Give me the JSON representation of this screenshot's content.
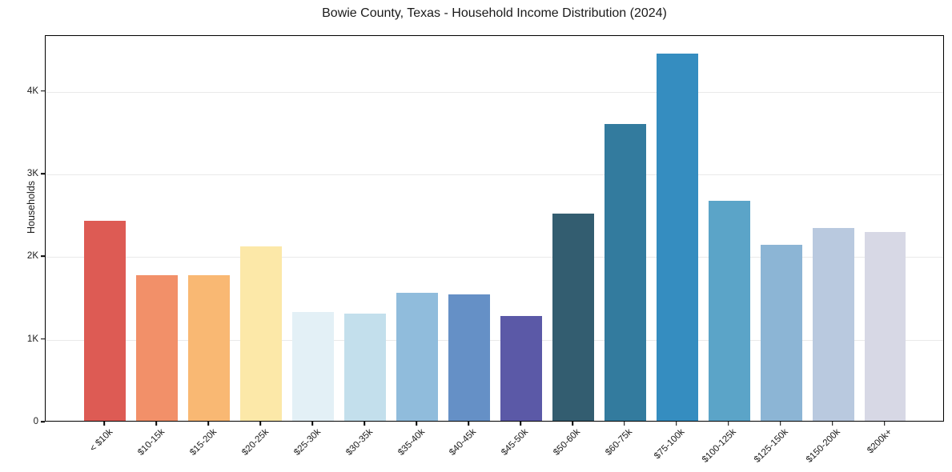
{
  "chart_data": {
    "type": "bar",
    "title": "Bowie County, Texas - Household Income Distribution (2024)",
    "xlabel": "",
    "ylabel": "Households",
    "ylim": [
      0,
      4675
    ],
    "grid": "horizontal-only",
    "legend": "none",
    "background": "#ffffff",
    "yticks": [
      {
        "value": 0,
        "label": "0"
      },
      {
        "value": 1000,
        "label": "1K"
      },
      {
        "value": 2000,
        "label": "2K"
      },
      {
        "value": 3000,
        "label": "3K"
      },
      {
        "value": 4000,
        "label": "4K"
      }
    ],
    "categories": [
      "< $10k",
      "$10-15k",
      "$15-20k",
      "$20-25k",
      "$25-30k",
      "$30-35k",
      "$35-40k",
      "$40-45k",
      "$45-50k",
      "$50-60k",
      "$60-75k",
      "$75-100k",
      "$100-125k",
      "$125-150k",
      "$150-200k",
      "$200k+"
    ],
    "values": [
      2420,
      1760,
      1760,
      2110,
      1315,
      1300,
      1550,
      1530,
      1270,
      2510,
      3590,
      4445,
      2660,
      2130,
      2335,
      2285
    ],
    "bar_colors": [
      "#dd5b54",
      "#f29069",
      "#f9b873",
      "#fce8a8",
      "#e3f0f6",
      "#c3dfec",
      "#90bcdc",
      "#6590c6",
      "#5b59a7",
      "#335d70",
      "#337b9e",
      "#358dc0",
      "#5ba4c8",
      "#8cb5d5",
      "#b9c9df",
      "#d7d8e5"
    ]
  },
  "colors": {
    "spine": "#000000",
    "grid": "#eaeaea",
    "text": "#1a1a1a"
  }
}
